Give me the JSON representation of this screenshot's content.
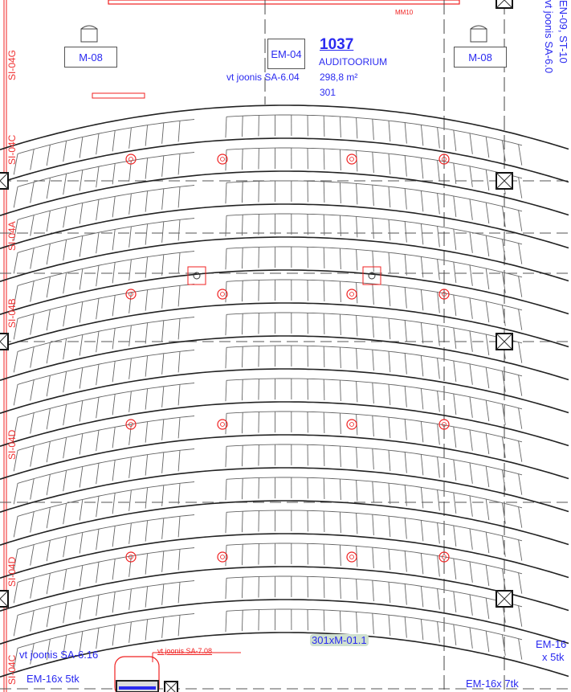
{
  "room": {
    "number": "1037",
    "name": "AUDITOORIUM",
    "area": "298,8 m²",
    "seats": "301",
    "ref_left": "vt joonis SA-6.04"
  },
  "equipment": {
    "em04": "EM-04",
    "m08_left": "M-08",
    "m08_right": "M-08",
    "mm10": "MM10",
    "seat_tag": "301xM-01.1",
    "em16_left": "EM-16x 5tk",
    "em16_bottom_right": "EM-16x 7tk",
    "em16_right_line1": "EM-16",
    "em16_right_line2": "x 5tk"
  },
  "references": {
    "bottom_left": "vt joonis SA-6.16",
    "bottom_red": "vt joonis SA-7.08",
    "right_vertical_1": "vt joonis SA-6.0",
    "right_vertical_2": "EN-09, ST-10"
  },
  "wall_labels": [
    "SI-04G",
    "SI-04C",
    "SI-04A",
    "SI-04B",
    "SI-04D",
    "SI-04D",
    "SI-04C"
  ],
  "icons": {
    "column": "column-x-icon",
    "sprinkler": "sprinkler-icon",
    "detector": "detector-icon",
    "pot": "pot-icon"
  },
  "colors": {
    "line": "#222222",
    "annotation": "#2a2af0",
    "fire": "#f02020",
    "highlight": "#cfe0cf"
  }
}
